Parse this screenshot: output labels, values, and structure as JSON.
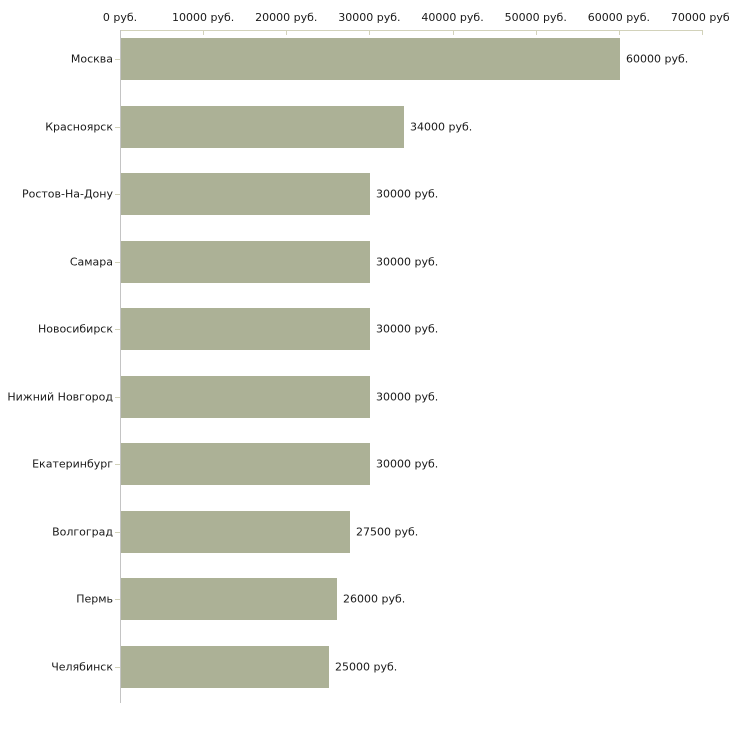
{
  "chart_data": {
    "type": "bar",
    "orientation": "horizontal",
    "title": "",
    "xlabel": "",
    "ylabel": "",
    "unit": "руб.",
    "xlim": [
      0,
      70000
    ],
    "grid": false,
    "legend": "none",
    "categories": [
      "Москва",
      "Красноярск",
      "Ростов-На-Дону",
      "Самара",
      "Новосибирск",
      "Нижний Новгород",
      "Екатеринбург",
      "Волгоград",
      "Пермь",
      "Челябинск"
    ],
    "values": [
      60000,
      34000,
      30000,
      30000,
      30000,
      30000,
      30000,
      27500,
      26000,
      25000
    ],
    "value_labels": [
      "60000 руб.",
      "34000 руб.",
      "30000 руб.",
      "30000 руб.",
      "30000 руб.",
      "30000 руб.",
      "30000 руб.",
      "27500 руб.",
      "26000 руб.",
      "25000 руб."
    ],
    "x_ticks": [
      {
        "value": 0,
        "label": "0 руб."
      },
      {
        "value": 10000,
        "label": "10000 руб."
      },
      {
        "value": 20000,
        "label": "20000 руб."
      },
      {
        "value": 30000,
        "label": "30000 руб."
      },
      {
        "value": 40000,
        "label": "40000 руб."
      },
      {
        "value": 50000,
        "label": "50000 руб."
      },
      {
        "value": 60000,
        "label": "60000 руб."
      },
      {
        "value": 70000,
        "label": "70000 руб."
      }
    ],
    "colors": {
      "bar_fill": "#ACB196",
      "axis_horizontal": "#D2D2BA",
      "axis_vertical": "#C4C4C4",
      "text": "#1A1A1A",
      "background": "#FFFFFF"
    }
  }
}
